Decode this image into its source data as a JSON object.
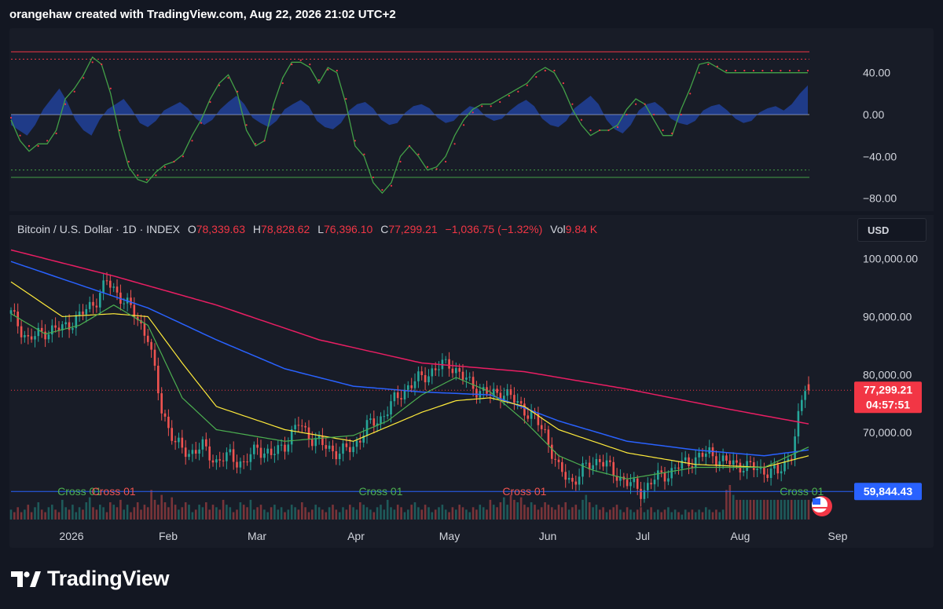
{
  "header": {
    "text": "orangehaw created with TradingView.com, Aug 22, 2026 21:02 UTC+2"
  },
  "legend": {
    "symbol": "Bitcoin / U.S. Dollar · 1D · INDEX",
    "open_label": "O",
    "open": "78,339.63",
    "high_label": "H",
    "high": "78,828.62",
    "low_label": "L",
    "low": "76,396.10",
    "close_label": "C",
    "close": "77,299.21",
    "change": "−1,036.75 (−1.32%)",
    "vol_label": "Vol",
    "vol": "9.84 K"
  },
  "currency_button": "USD",
  "footer": {
    "brand": "TradingView"
  },
  "colors": {
    "background": "#181c27",
    "up": "#26a69a",
    "down": "#ef5350",
    "ma_pink": "#e91e63",
    "ma_blue": "#2962ff",
    "ma_yellow": "#ffeb3b",
    "ma_green": "#4caf50",
    "support_line": "#2962ff",
    "osc_red": "#f23645",
    "osc_green": "#43a047"
  },
  "chart_data": [
    {
      "type": "line",
      "name_hint": "oscillator",
      "yticks": [
        "40.00",
        "0.00",
        "−40.00",
        "−80.00"
      ],
      "ylim": [
        -90,
        75
      ],
      "levels": [
        60,
        53,
        0,
        -53,
        -60
      ],
      "x": [
        0,
        5,
        10,
        15,
        20,
        25,
        30,
        35,
        40,
        45,
        50,
        55,
        60,
        65,
        70,
        75,
        80,
        85,
        90,
        95,
        100,
        105,
        110,
        115,
        120,
        125,
        130,
        135,
        140,
        145,
        150,
        155,
        160,
        165,
        170,
        175,
        180,
        185,
        190,
        195,
        200,
        205,
        210,
        215,
        220,
        225,
        230,
        235
      ],
      "series": [
        {
          "values": [
            -5,
            -25,
            -35,
            -28,
            -28,
            -15,
            15,
            25,
            38,
            55,
            48,
            20,
            -20,
            -50,
            -62,
            -65,
            -55,
            -48,
            -45,
            -38,
            -20,
            -5,
            15,
            30,
            38,
            20,
            -15,
            -30,
            -25,
            10,
            35,
            50,
            50,
            45,
            30,
            45,
            40,
            10,
            -30,
            -40,
            -65,
            -75,
            -65,
            -40,
            -30,
            -40,
            -53,
            -50
          ]
        },
        {
          "values": [
            -3,
            -20,
            -30,
            -30,
            -25,
            -18,
            10,
            22,
            35,
            50,
            48,
            25,
            -15,
            -45,
            -58,
            -62,
            -58,
            -50,
            -45,
            -40,
            -25,
            -8,
            12,
            28,
            35,
            22,
            -10,
            -28,
            -25,
            5,
            30,
            48,
            52,
            48,
            33,
            43,
            42,
            15,
            -25,
            -38,
            -60,
            -72,
            -68,
            -45,
            -30,
            -38,
            -50,
            -52
          ]
        }
      ],
      "x_ext": [
        235,
        240,
        245,
        250,
        255,
        260,
        265,
        270,
        275,
        280,
        285,
        290,
        295,
        300,
        305,
        310,
        315,
        320,
        325,
        330,
        335,
        340,
        345,
        350,
        355,
        360,
        365,
        370,
        375,
        380,
        385,
        390,
        395,
        400,
        405,
        410,
        415,
        420,
        425,
        430,
        435,
        440
      ],
      "series_ext": [
        {
          "values": [
            -50,
            -40,
            -20,
            -5,
            5,
            10,
            10,
            15,
            20,
            25,
            30,
            40,
            45,
            40,
            25,
            5,
            -10,
            -20,
            -15,
            -15,
            -10,
            5,
            15,
            10,
            -5,
            -20,
            -20,
            5,
            25,
            48,
            50,
            45,
            40,
            40,
            40,
            40,
            40,
            40,
            40,
            40,
            40,
            40
          ]
        },
        {
          "values": [
            -52,
            -45,
            -28,
            -10,
            2,
            8,
            8,
            12,
            18,
            22,
            28,
            36,
            42,
            42,
            30,
            10,
            -5,
            -15,
            -15,
            -15,
            -12,
            0,
            10,
            10,
            0,
            -15,
            -18,
            0,
            20,
            40,
            48,
            46,
            42,
            42,
            42,
            42,
            42,
            42,
            42,
            42,
            42,
            42
          ]
        }
      ],
      "histogram": [
        -10,
        -15,
        -20,
        -10,
        5,
        15,
        25,
        12,
        -5,
        -15,
        -20,
        -5,
        5,
        10,
        15,
        5,
        -8,
        -12,
        -6,
        4,
        8,
        12,
        6,
        -4,
        -10,
        -5,
        5,
        12,
        18,
        10,
        -3,
        -8,
        -12,
        -6,
        5,
        10,
        14,
        8,
        -6,
        -12,
        -14,
        -8,
        4,
        10,
        12,
        6,
        -5,
        -10,
        -8,
        2,
        8,
        10,
        6,
        -3,
        -8,
        -6,
        2,
        8,
        6,
        -2,
        -6,
        -4,
        4,
        10,
        14,
        8,
        -4,
        -10,
        -12,
        -6,
        6,
        12,
        18,
        10,
        -5,
        -14,
        -18,
        -10,
        4,
        10,
        12,
        6,
        -4,
        -8,
        -10,
        -6,
        4,
        8,
        10,
        4,
        -4,
        -8,
        -6,
        2,
        6,
        8,
        4,
        10,
        20,
        28
      ]
    },
    {
      "type": "candlestick",
      "title": "Bitcoin / U.S. Dollar · 1D · INDEX",
      "yticks": [
        "100,000.00",
        "90,000.00",
        "80,000.00",
        "70,000.00"
      ],
      "ylim": [
        55000,
        104000
      ],
      "xticks": [
        "2026",
        "Feb",
        "Mar",
        "Apr",
        "May",
        "Jun",
        "Jul",
        "Aug",
        "Sep"
      ],
      "last_price": "77,299.21",
      "countdown": "04:57:51",
      "support_price": "59,844.43",
      "support_value": 59844.43,
      "annotations": [
        {
          "text": "Cross 01",
          "day": 20,
          "color": "#4caf50"
        },
        {
          "text": "Cross 01",
          "day": 30,
          "color": "#ef5350"
        },
        {
          "text": "Cross 01",
          "day": 108,
          "color": "#4caf50"
        },
        {
          "text": "Cross 01",
          "day": 150,
          "color": "#ef5350"
        },
        {
          "text": "Cross 01",
          "day": 231,
          "color": "#4caf50"
        }
      ],
      "close_keypoints": [
        [
          0,
          90500
        ],
        [
          5,
          86000
        ],
        [
          10,
          87500
        ],
        [
          15,
          88000
        ],
        [
          20,
          90000
        ],
        [
          25,
          93000
        ],
        [
          28,
          96000
        ],
        [
          32,
          93500
        ],
        [
          36,
          90500
        ],
        [
          40,
          86500
        ],
        [
          44,
          74000
        ],
        [
          48,
          68000
        ],
        [
          52,
          66500
        ],
        [
          56,
          67500
        ],
        [
          60,
          65000
        ],
        [
          64,
          66000
        ],
        [
          68,
          64500
        ],
        [
          72,
          67500
        ],
        [
          76,
          66000
        ],
        [
          80,
          68000
        ],
        [
          84,
          71500
        ],
        [
          88,
          69000
        ],
        [
          92,
          67500
        ],
        [
          96,
          66500
        ],
        [
          100,
          67500
        ],
        [
          104,
          71000
        ],
        [
          108,
          72500
        ],
        [
          112,
          75500
        ],
        [
          116,
          78000
        ],
        [
          120,
          79500
        ],
        [
          124,
          81000
        ],
        [
          128,
          82000
        ],
        [
          132,
          79500
        ],
        [
          136,
          77500
        ],
        [
          140,
          76500
        ],
        [
          144,
          77000
        ],
        [
          148,
          75000
        ],
        [
          152,
          73000
        ],
        [
          156,
          70000
        ],
        [
          160,
          63500
        ],
        [
          164,
          61500
        ],
        [
          168,
          64000
        ],
        [
          172,
          65500
        ],
        [
          176,
          63000
        ],
        [
          180,
          61500
        ],
        [
          184,
          59800
        ],
        [
          188,
          62000
        ],
        [
          192,
          63000
        ],
        [
          196,
          64500
        ],
        [
          200,
          65500
        ],
        [
          204,
          66500
        ],
        [
          208,
          65000
        ],
        [
          212,
          64500
        ],
        [
          216,
          64000
        ],
        [
          220,
          63500
        ],
        [
          224,
          63000
        ],
        [
          228,
          66500
        ],
        [
          232,
          78000
        ],
        [
          233,
          77300
        ]
      ],
      "ma_pink_keypoints": [
        [
          0,
          101500
        ],
        [
          30,
          97000
        ],
        [
          60,
          92000
        ],
        [
          90,
          86000
        ],
        [
          120,
          82000
        ],
        [
          150,
          80500
        ],
        [
          180,
          77500
        ],
        [
          210,
          74000
        ],
        [
          233,
          71500
        ]
      ],
      "ma_blue_keypoints": [
        [
          0,
          99500
        ],
        [
          20,
          95500
        ],
        [
          40,
          91500
        ],
        [
          60,
          86000
        ],
        [
          80,
          81000
        ],
        [
          100,
          78000
        ],
        [
          120,
          77000
        ],
        [
          140,
          76500
        ],
        [
          160,
          72000
        ],
        [
          180,
          68500
        ],
        [
          200,
          67000
        ],
        [
          220,
          66000
        ],
        [
          233,
          67000
        ]
      ],
      "ma_yellow_keypoints": [
        [
          0,
          96000
        ],
        [
          15,
          90000
        ],
        [
          30,
          90500
        ],
        [
          40,
          90000
        ],
        [
          50,
          82000
        ],
        [
          60,
          74500
        ],
        [
          80,
          70500
        ],
        [
          100,
          68500
        ],
        [
          120,
          73500
        ],
        [
          130,
          75500
        ],
        [
          140,
          76000
        ],
        [
          150,
          74500
        ],
        [
          160,
          70500
        ],
        [
          180,
          66500
        ],
        [
          200,
          64500
        ],
        [
          220,
          64000
        ],
        [
          233,
          66000
        ]
      ],
      "ma_green_keypoints": [
        [
          0,
          90500
        ],
        [
          10,
          87000
        ],
        [
          20,
          88500
        ],
        [
          30,
          92000
        ],
        [
          40,
          88500
        ],
        [
          50,
          76000
        ],
        [
          60,
          70500
        ],
        [
          80,
          68500
        ],
        [
          100,
          69500
        ],
        [
          110,
          72000
        ],
        [
          120,
          76500
        ],
        [
          130,
          79500
        ],
        [
          140,
          77000
        ],
        [
          150,
          72000
        ],
        [
          160,
          66000
        ],
        [
          170,
          63500
        ],
        [
          180,
          62000
        ],
        [
          190,
          63000
        ],
        [
          200,
          64000
        ],
        [
          220,
          64000
        ],
        [
          233,
          67500
        ]
      ],
      "volume_max_label": "",
      "volumes": [
        4,
        3,
        5,
        3,
        4,
        6,
        3,
        5,
        7,
        4,
        3,
        5,
        6,
        4,
        3,
        8,
        5,
        4,
        6,
        3,
        5,
        4,
        7,
        9,
        5,
        4,
        6,
        5,
        3,
        7,
        6,
        5,
        8,
        4,
        6,
        3,
        5,
        7,
        4,
        6,
        5,
        12,
        8,
        6,
        10,
        7,
        5,
        9,
        6,
        4,
        5,
        7,
        6,
        3,
        4,
        6,
        5,
        7,
        4,
        6,
        5,
        4,
        8,
        6,
        5,
        3,
        4,
        7,
        6,
        5,
        8,
        4,
        5,
        6,
        4,
        3,
        5,
        6,
        4,
        5,
        3,
        4,
        6,
        5,
        4,
        7,
        5,
        3,
        4,
        6,
        5,
        4,
        3,
        5,
        6,
        4,
        3,
        5,
        4,
        6,
        5,
        4,
        7,
        6,
        5,
        4,
        3,
        5,
        6,
        4,
        8,
        5,
        4,
        6,
        5,
        3,
        4,
        6,
        7,
        5,
        4,
        6,
        5,
        3,
        4,
        5,
        6,
        4,
        3,
        5,
        4,
        6,
        5,
        4,
        3,
        5,
        4,
        6,
        5,
        4,
        8,
        6,
        5,
        7,
        9,
        6,
        10,
        8,
        7,
        9,
        6,
        5,
        7,
        6,
        4,
        5,
        7,
        6,
        5,
        4,
        6,
        5,
        7,
        4,
        5,
        6,
        4,
        8,
        10,
        7,
        5,
        6,
        4,
        5,
        3,
        4,
        5,
        6,
        4,
        3,
        5,
        4,
        3,
        4,
        5,
        3,
        4,
        5,
        3,
        4,
        3,
        4,
        5,
        3,
        4,
        3,
        2,
        4,
        3,
        4,
        3,
        4,
        3,
        5,
        4,
        3,
        4,
        3,
        4,
        12,
        14,
        10,
        8
      ]
    }
  ]
}
